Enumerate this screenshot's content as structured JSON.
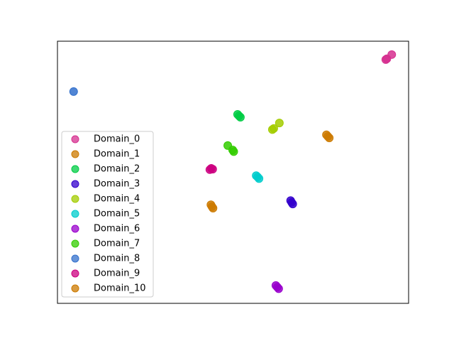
{
  "chart_data": {
    "type": "scatter",
    "xlim": [
      0,
      100
    ],
    "ylim": [
      0,
      100
    ],
    "legend": "center left",
    "series": [
      {
        "name": "Domain_0",
        "color": "#d62f8f",
        "x": [
          93.5,
          95.2,
          93.8
        ],
        "y": [
          93.0,
          94.9,
          93.3
        ]
      },
      {
        "name": "Domain_1",
        "color": "#cc7a00",
        "x": [
          77.0,
          76.6,
          77.4
        ],
        "y": [
          63.7,
          64.3,
          63.1
        ]
      },
      {
        "name": "Domain_2",
        "color": "#00cc44",
        "x": [
          51.7,
          51.3,
          52.1
        ],
        "y": [
          71.5,
          72.1,
          71.0
        ]
      },
      {
        "name": "Domain_3",
        "color": "#3300cc",
        "x": [
          66.7,
          66.4,
          67.0
        ],
        "y": [
          38.5,
          39.2,
          37.9
        ]
      },
      {
        "name": "Domain_4",
        "color": "#a3cc00",
        "x": [
          61.6,
          63.2,
          61.2
        ],
        "y": [
          66.7,
          68.8,
          66.3
        ]
      },
      {
        "name": "Domain_5",
        "color": "#00cccc",
        "x": [
          57.0,
          56.6,
          57.4
        ],
        "y": [
          48.2,
          48.7,
          47.6
        ]
      },
      {
        "name": "Domain_6",
        "color": "#9900cc",
        "x": [
          62.6,
          62.2,
          63.0
        ],
        "y": [
          6.2,
          6.8,
          5.6
        ]
      },
      {
        "name": "Domain_7",
        "color": "#33cc00",
        "x": [
          48.5,
          49.9,
          50.2
        ],
        "y": [
          60.2,
          58.5,
          57.9
        ]
      },
      {
        "name": "Domain_8",
        "color": "#3370cc",
        "x": [
          4.6
        ],
        "y": [
          80.8
        ]
      },
      {
        "name": "Domain_9",
        "color": "#cc0080",
        "x": [
          43.8,
          43.4,
          44.2
        ],
        "y": [
          51.5,
          51.0,
          51.2
        ]
      },
      {
        "name": "Domain_10",
        "color": "#cc7a00",
        "x": [
          44.0,
          43.7,
          44.3
        ],
        "y": [
          36.9,
          37.6,
          36.3
        ]
      }
    ]
  }
}
